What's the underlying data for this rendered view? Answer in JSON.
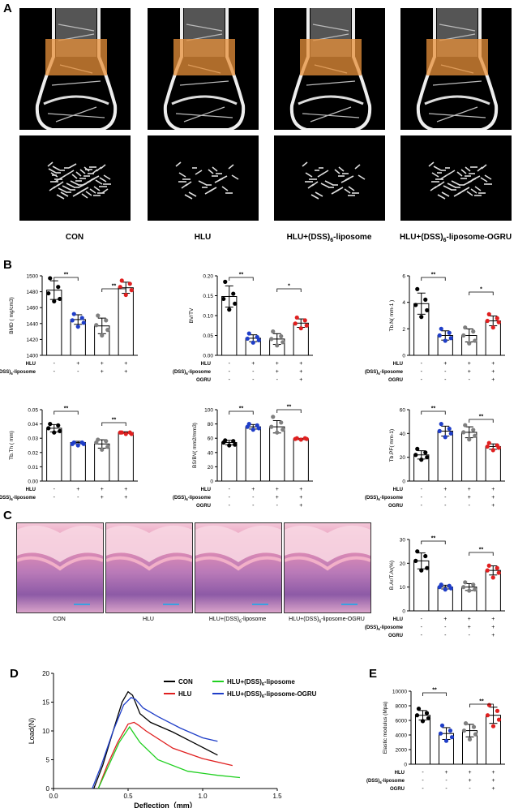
{
  "panels": {
    "A": "A",
    "B": "B",
    "C": "C",
    "D": "D",
    "E": "E"
  },
  "group_labels": [
    "CON",
    "HLU",
    "HLU+(DSS)6-liposome",
    "HLU+(DSS)6-liposome-OGRU"
  ],
  "treatment_rows": [
    {
      "label": "HLU",
      "signs": [
        "-",
        "+",
        "+",
        "+"
      ]
    },
    {
      "label": "(DSS)6-liposome",
      "signs": [
        "-",
        "-",
        "+",
        "+"
      ]
    },
    {
      "label": "OGRU",
      "signs": [
        "-",
        "-",
        "-",
        "+"
      ]
    }
  ],
  "colors": {
    "CON": "#000000",
    "HLU": "#1f3ec8",
    "DSS": "#7f7f7f",
    "OGRU": "#e02020",
    "roi": "#e8903a"
  },
  "chart_data": [
    {
      "type": "bar",
      "id": "bmd",
      "ylabel": "BMD ( mg/cm3)",
      "ylim": [
        1400,
        1500
      ],
      "yticks": [
        1400,
        1420,
        1440,
        1460,
        1480,
        1500
      ],
      "values": [
        1482,
        1445,
        1437,
        1485
      ],
      "points": [
        [
          1497,
          1486,
          1478,
          1471,
          1468
        ],
        [
          1452,
          1447,
          1444,
          1441,
          1436
        ],
        [
          1450,
          1444,
          1438,
          1432,
          1425
        ],
        [
          1494,
          1490,
          1486,
          1482,
          1476
        ]
      ],
      "sig": [
        {
          "a": 0,
          "b": 1,
          "label": "**"
        },
        {
          "a": 2,
          "b": 3,
          "label": "**"
        }
      ],
      "rows": 2
    },
    {
      "type": "bar",
      "id": "bvtv",
      "ylabel": "BV/TV",
      "ylim": [
        0,
        0.2
      ],
      "yticks": [
        0.0,
        0.05,
        0.1,
        0.15,
        0.2
      ],
      "values": [
        0.148,
        0.043,
        0.041,
        0.081
      ],
      "points": [
        [
          0.185,
          0.155,
          0.142,
          0.13,
          0.115
        ],
        [
          0.055,
          0.046,
          0.042,
          0.038,
          0.032
        ],
        [
          0.06,
          0.048,
          0.041,
          0.033,
          0.025
        ],
        [
          0.095,
          0.088,
          0.08,
          0.075,
          0.068
        ]
      ],
      "sig": [
        {
          "a": 0,
          "b": 1,
          "label": "**"
        },
        {
          "a": 2,
          "b": 3,
          "label": "*"
        }
      ],
      "rows": 3
    },
    {
      "type": "bar",
      "id": "tbn",
      "ylabel": "Tb.N( mm-1 )",
      "ylim": [
        0,
        6
      ],
      "yticks": [
        0,
        2,
        4,
        6
      ],
      "values": [
        3.9,
        1.5,
        1.5,
        2.6
      ],
      "points": [
        [
          5.0,
          4.2,
          3.8,
          3.4,
          2.9
        ],
        [
          2.0,
          1.7,
          1.5,
          1.3,
          1.1
        ],
        [
          2.1,
          1.8,
          1.5,
          1.1,
          0.9
        ],
        [
          3.1,
          2.8,
          2.6,
          2.5,
          2.1
        ]
      ],
      "sig": [
        {
          "a": 0,
          "b": 1,
          "label": "**"
        },
        {
          "a": 2,
          "b": 3,
          "label": "*"
        }
      ],
      "rows": 3
    },
    {
      "type": "bar",
      "id": "tbth",
      "ylabel": "Tb.Th ( mm)",
      "ylim": [
        0,
        0.05
      ],
      "yticks": [
        0.0,
        0.01,
        0.02,
        0.03,
        0.04,
        0.05
      ],
      "values": [
        0.037,
        0.027,
        0.026,
        0.034
      ],
      "points": [
        [
          0.04,
          0.039,
          0.037,
          0.035,
          0.034
        ],
        [
          0.027,
          0.027,
          0.026,
          0.026,
          0.025
        ],
        [
          0.029,
          0.028,
          0.027,
          0.024,
          0.022
        ],
        [
          0.034,
          0.034,
          0.034,
          0.033,
          0.033
        ]
      ],
      "sig": [
        {
          "a": 0,
          "b": 1,
          "label": "**"
        },
        {
          "a": 2,
          "b": 3,
          "label": "**"
        }
      ],
      "rows": 2
    },
    {
      "type": "bar",
      "id": "bsbv",
      "ylabel": "BS/BV( mm2/mm3)",
      "ylim": [
        0,
        100
      ],
      "yticks": [
        0,
        20,
        40,
        60,
        80,
        100
      ],
      "values": [
        54,
        76,
        76,
        59
      ],
      "points": [
        [
          57,
          56,
          54,
          51,
          50
        ],
        [
          80,
          78,
          76,
          74,
          72
        ],
        [
          90,
          82,
          76,
          72,
          68
        ],
        [
          60,
          60,
          59,
          59,
          58
        ]
      ],
      "sig": [
        {
          "a": 0,
          "b": 1,
          "label": "**"
        },
        {
          "a": 2,
          "b": 3,
          "label": "**"
        }
      ],
      "rows": 3
    },
    {
      "type": "bar",
      "id": "tbpf",
      "ylabel": "Tb.PF( mm-1)",
      "ylim": [
        0,
        60
      ],
      "yticks": [
        0,
        20,
        40,
        60
      ],
      "values": [
        22,
        42,
        41,
        29
      ],
      "points": [
        [
          27,
          24,
          22,
          20,
          18
        ],
        [
          48,
          44,
          42,
          40,
          37
        ],
        [
          47,
          43,
          41,
          38,
          35
        ],
        [
          32,
          30,
          29,
          28,
          26
        ]
      ],
      "sig": [
        {
          "a": 0,
          "b": 1,
          "label": "**"
        },
        {
          "a": 2,
          "b": 3,
          "label": "**"
        }
      ],
      "rows": 3
    },
    {
      "type": "bar",
      "id": "bar",
      "ylabel": "B.Ar/T.Ar(%)",
      "ylim": [
        0,
        30
      ],
      "yticks": [
        0,
        10,
        20,
        30
      ],
      "values": [
        21,
        10,
        10,
        17
      ],
      "points": [
        [
          25,
          23,
          21,
          18,
          17
        ],
        [
          11,
          10.5,
          10,
          9.5,
          9
        ],
        [
          12,
          11,
          10,
          9,
          8.5
        ],
        [
          19,
          18,
          17,
          16,
          14
        ]
      ],
      "sig": [
        {
          "a": 0,
          "b": 1,
          "label": "**"
        },
        {
          "a": 2,
          "b": 3,
          "label": "**"
        }
      ],
      "rows": 3
    },
    {
      "type": "line",
      "id": "load",
      "xlabel": "Deflection（mm）",
      "ylabel": "Load(N)",
      "xlim": [
        0,
        1.5
      ],
      "ylim": [
        0,
        20
      ],
      "xticks": [
        "0.0",
        "0.5",
        "1.0",
        "1.5"
      ],
      "yticks": [
        0,
        5,
        10,
        15,
        20
      ],
      "series": [
        {
          "name": "CON",
          "color": "#000000",
          "points": [
            [
              0.27,
              0
            ],
            [
              0.33,
              4
            ],
            [
              0.4,
              10
            ],
            [
              0.46,
              15
            ],
            [
              0.5,
              16.8
            ],
            [
              0.53,
              16.2
            ],
            [
              0.58,
              13.0
            ],
            [
              0.65,
              11.5
            ],
            [
              0.8,
              9.8
            ],
            [
              0.95,
              7.8
            ],
            [
              1.1,
              5.8
            ]
          ]
        },
        {
          "name": "HLU",
          "color": "#e02020",
          "points": [
            [
              0.3,
              0
            ],
            [
              0.36,
              4
            ],
            [
              0.43,
              8
            ],
            [
              0.5,
              11.2
            ],
            [
              0.54,
              11.5
            ],
            [
              0.57,
              11.0
            ],
            [
              0.62,
              10.0
            ],
            [
              0.8,
              7.0
            ],
            [
              1.0,
              5.2
            ],
            [
              1.2,
              4.0
            ]
          ]
        },
        {
          "name": "HLU+(DSS)6-liposome",
          "color": "#20d020",
          "points": [
            [
              0.3,
              0
            ],
            [
              0.37,
              4
            ],
            [
              0.44,
              8
            ],
            [
              0.51,
              10.7
            ],
            [
              0.54,
              9.5
            ],
            [
              0.58,
              8.0
            ],
            [
              0.7,
              5.0
            ],
            [
              0.9,
              3.0
            ],
            [
              1.1,
              2.3
            ],
            [
              1.25,
              1.9
            ]
          ]
        },
        {
          "name": "HLU+(DSS)6-liposome-OGRU",
          "color": "#1f3ec8",
          "points": [
            [
              0.26,
              0
            ],
            [
              0.32,
              4
            ],
            [
              0.4,
              10
            ],
            [
              0.47,
              14.5
            ],
            [
              0.52,
              15.8
            ],
            [
              0.55,
              15.5
            ],
            [
              0.6,
              14.0
            ],
            [
              0.7,
              12.5
            ],
            [
              0.85,
              10.5
            ],
            [
              1.0,
              8.8
            ],
            [
              1.1,
              8.2
            ]
          ]
        }
      ]
    },
    {
      "type": "bar",
      "id": "em",
      "ylabel": "Elastic modulus (Mpa)",
      "ylim": [
        0,
        10000
      ],
      "yticks": [
        0,
        2000,
        4000,
        6000,
        8000,
        10000
      ],
      "values": [
        6700,
        4200,
        4600,
        6700
      ],
      "points": [
        [
          7600,
          7000,
          6700,
          6300,
          5900
        ],
        [
          5300,
          4600,
          4200,
          3700,
          3200
        ],
        [
          5600,
          5100,
          4600,
          4100,
          3400
        ],
        [
          8100,
          7300,
          6700,
          6100,
          5200
        ]
      ],
      "sig": [
        {
          "a": 0,
          "b": 1,
          "label": "**"
        },
        {
          "a": 2,
          "b": 3,
          "label": "**"
        }
      ],
      "rows": 3
    }
  ]
}
